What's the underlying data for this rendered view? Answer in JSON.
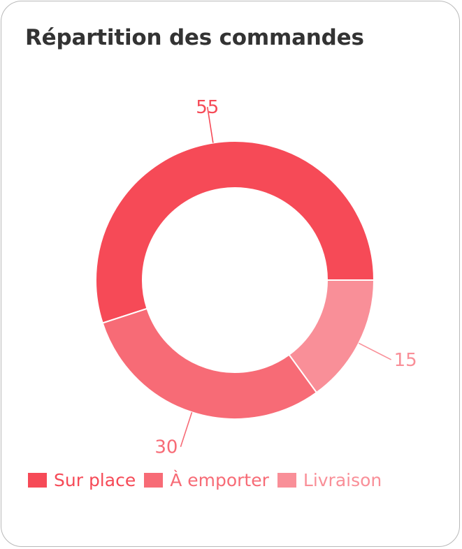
{
  "card": {
    "title": "Répartition des commandes"
  },
  "chart_data": {
    "type": "pie",
    "variant": "donut",
    "title": "Répartition des commandes",
    "categories": [
      "Sur place",
      "À emporter",
      "Livraison"
    ],
    "values": [
      55,
      30,
      15
    ],
    "colors": [
      "#f64a57",
      "#f76b76",
      "#f98f98"
    ],
    "start_angle_deg": 0,
    "direction": "counterclockwise",
    "legend_position": "bottom-left",
    "data_labels": true
  }
}
